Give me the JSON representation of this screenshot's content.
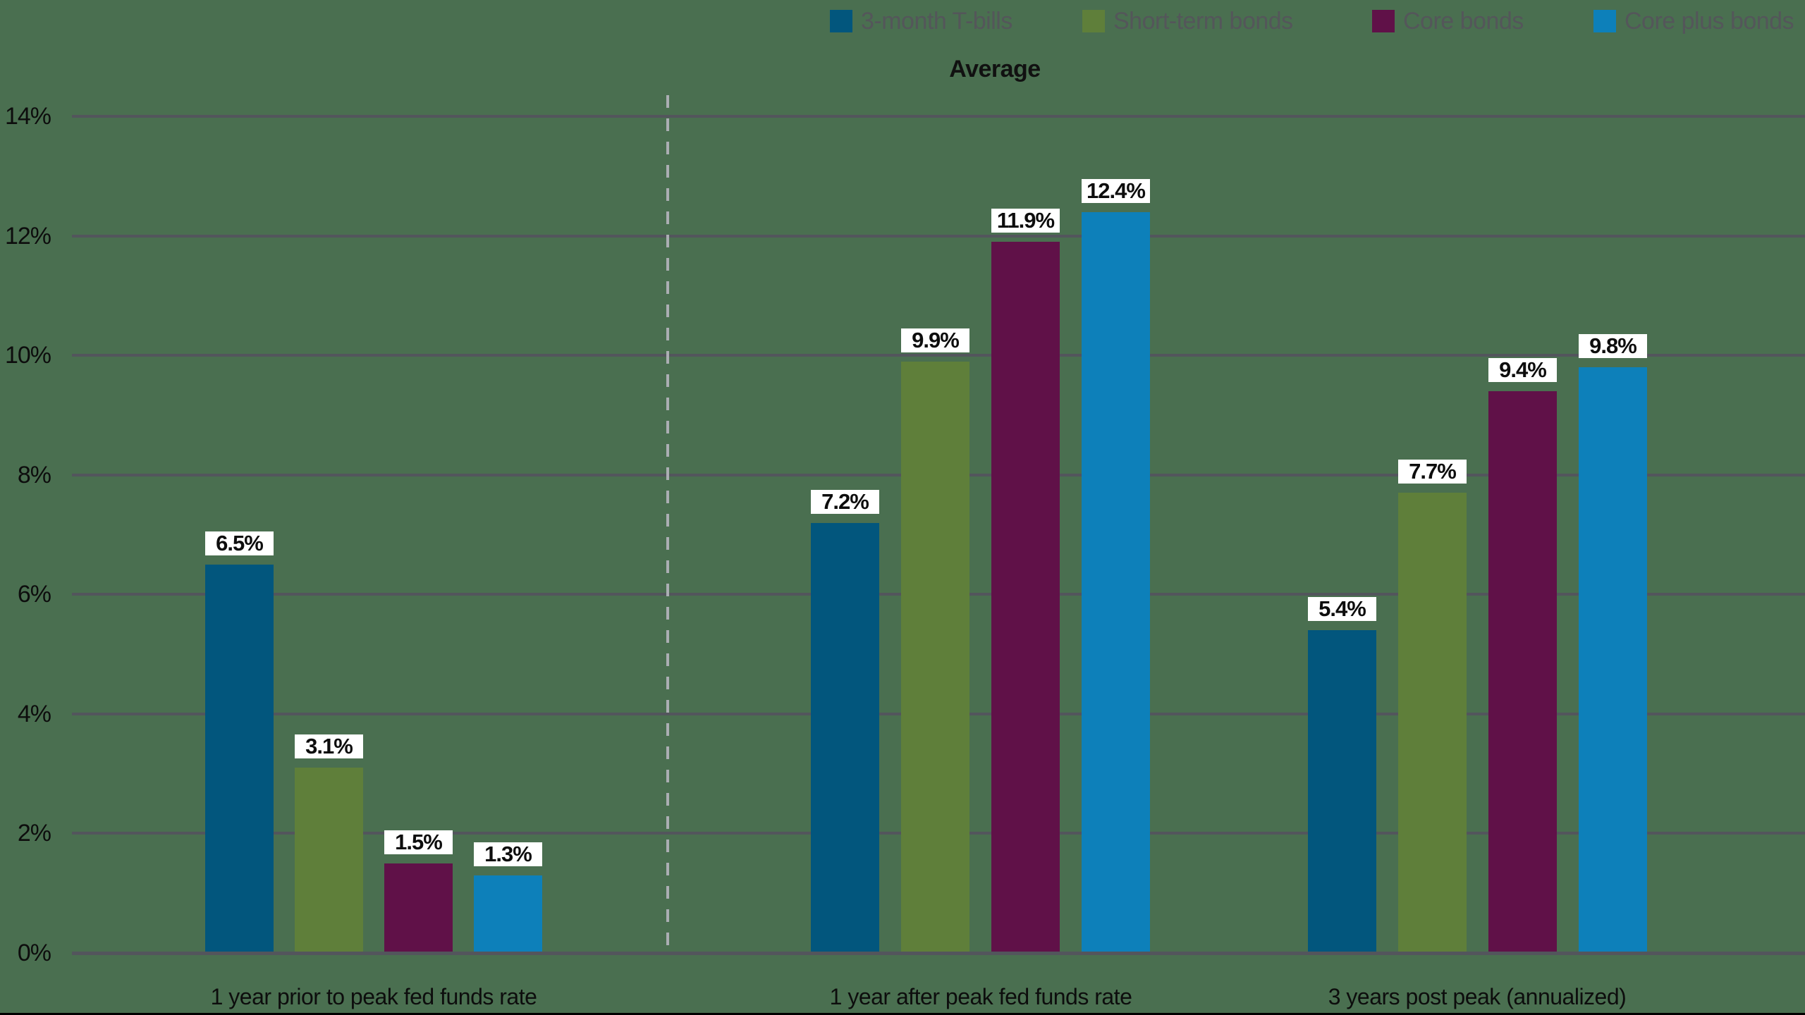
{
  "chart_data": {
    "type": "bar",
    "title": "Average",
    "categories": [
      "1 year prior to peak fed funds rate",
      "1 year after peak fed funds rate",
      "3 years post peak (annualized)"
    ],
    "series": [
      {
        "name": "3-month T-bills",
        "color": "#02567d",
        "values": [
          6.5,
          7.2,
          5.4
        ]
      },
      {
        "name": "Short-term bonds",
        "color": "#5f7f3a",
        "values": [
          3.1,
          9.9,
          7.7
        ]
      },
      {
        "name": "Core bonds",
        "color": "#601148",
        "values": [
          1.5,
          11.9,
          9.4
        ]
      },
      {
        "name": "Core plus bonds",
        "color": "#0d80ba",
        "values": [
          1.3,
          12.4,
          9.8
        ]
      }
    ],
    "value_labels": [
      [
        "6.5%",
        "3.1%",
        "1.5%",
        "1.3%"
      ],
      [
        "7.2%",
        "9.9%",
        "11.9%",
        "12.4%"
      ],
      [
        "5.4%",
        "7.7%",
        "9.4%",
        "9.8%"
      ]
    ],
    "y_ticks": [
      "0%",
      "2%",
      "4%",
      "6%",
      "8%",
      "10%",
      "12%",
      "14%"
    ],
    "ylim": [
      0,
      14
    ],
    "grid": true,
    "legend_position": "top",
    "divider_after_category": "1 year prior to peak fed funds rate"
  },
  "colors": {
    "background": "#4a6f50",
    "gridline": "#53555c",
    "axis_line": "#53555c",
    "divider_dash": "#abaeb3",
    "value_chip_bg": "#ffffff",
    "value_text": "#0d0d0d",
    "legend_text": "#54565a",
    "tick_text": "#0d0d0d",
    "category_text": "#0d0d0d",
    "title_text": "#111111",
    "bottom_rule": "#000000"
  }
}
